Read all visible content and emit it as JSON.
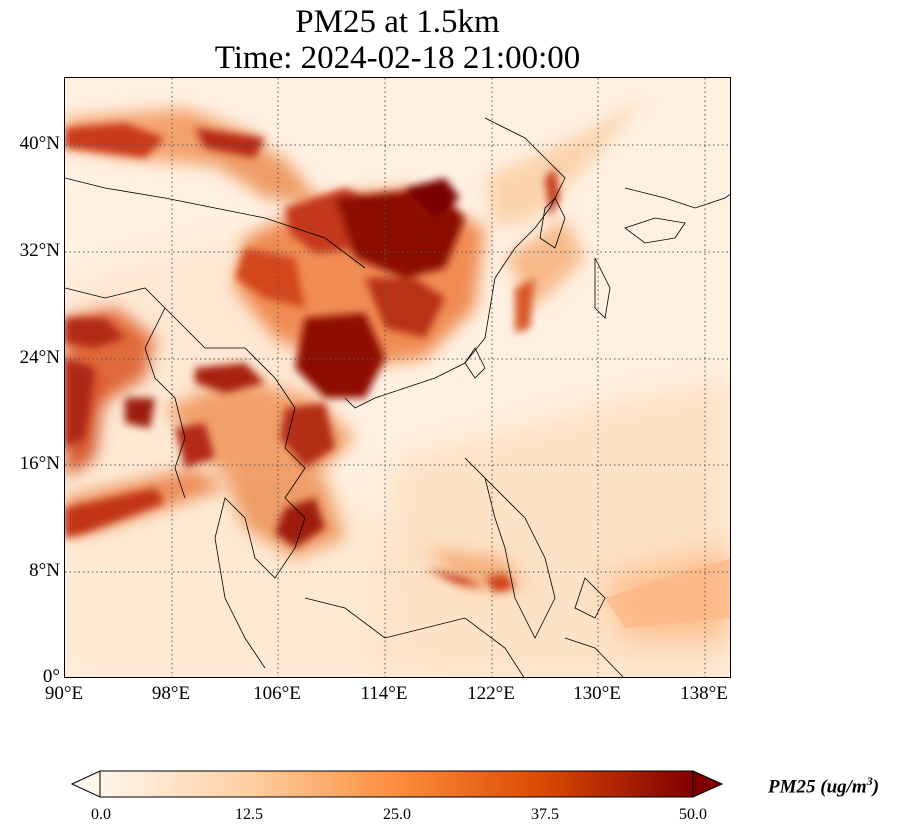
{
  "title": {
    "line1": "PM25 at 1.5km",
    "line2": "Time: 2024-02-18 21:00:00"
  },
  "map": {
    "type": "heatmap",
    "variable": "PM25",
    "level": "1.5km",
    "extent": {
      "lon": [
        90,
        140
      ],
      "lat": [
        0,
        45
      ]
    },
    "lat_ticks": [
      "40°N",
      "32°N",
      "24°N",
      "16°N",
      "8°N",
      "0°"
    ],
    "lon_ticks": [
      "90°E",
      "98°E",
      "106°E",
      "114°E",
      "122°E",
      "130°E",
      "138°E"
    ],
    "gridlines": "dotted",
    "colormap": [
      "#fff5eb",
      "#fdd0a2",
      "#fd8d3c",
      "#d94801",
      "#7f0000"
    ]
  },
  "colorbar": {
    "min": 0.0,
    "max": 50.0,
    "extend": "both",
    "ticks": [
      "0.0",
      "12.5",
      "25.0",
      "37.5",
      "50.0"
    ],
    "label_main": "PM25 (ug/m",
    "label_sup": "3",
    "label_end": ")"
  }
}
